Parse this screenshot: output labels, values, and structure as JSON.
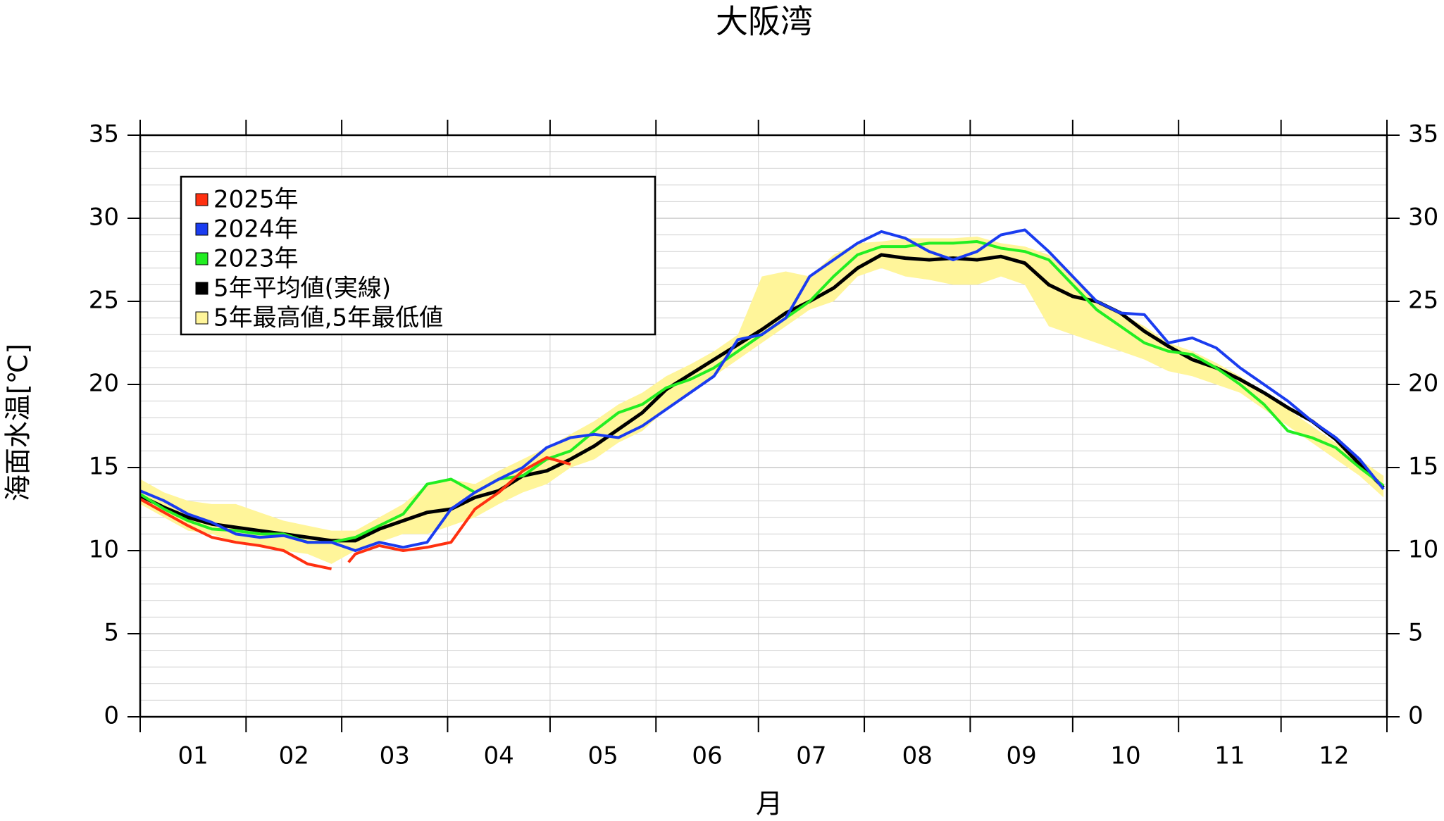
{
  "chart_data": {
    "type": "line",
    "title": "大阪湾",
    "y_label": "海面水温[℃]",
    "x_label": "月",
    "xlim": [
      0,
      365
    ],
    "month_boundaries": [
      0,
      31,
      59,
      90,
      120,
      151,
      181,
      212,
      243,
      273,
      304,
      334,
      365
    ],
    "xticks": [
      {
        "value": 15.5,
        "label": "01"
      },
      {
        "value": 45,
        "label": "02"
      },
      {
        "value": 74.5,
        "label": "03"
      },
      {
        "value": 105,
        "label": "04"
      },
      {
        "value": 135.5,
        "label": "05"
      },
      {
        "value": 166,
        "label": "06"
      },
      {
        "value": 196.5,
        "label": "07"
      },
      {
        "value": 227.5,
        "label": "08"
      },
      {
        "value": 258,
        "label": "09"
      },
      {
        "value": 288.5,
        "label": "10"
      },
      {
        "value": 319,
        "label": "11"
      },
      {
        "value": 349.5,
        "label": "12"
      }
    ],
    "ylim": [
      0,
      35
    ],
    "yticks": [
      0,
      5,
      10,
      15,
      20,
      25,
      30,
      35
    ],
    "minor_grid_step": 1,
    "grid": true,
    "legend": "upper left",
    "x": [
      0,
      7,
      14,
      21,
      28,
      35,
      42,
      49,
      56,
      63,
      70,
      77,
      84,
      91,
      98,
      105,
      112,
      119,
      126,
      133,
      140,
      147,
      154,
      161,
      168,
      175,
      182,
      189,
      196,
      203,
      210,
      217,
      224,
      231,
      238,
      245,
      252,
      259,
      266,
      273,
      280,
      287,
      294,
      301,
      308,
      315,
      322,
      329,
      336,
      343,
      350,
      357,
      364
    ],
    "series": [
      {
        "name": "2025年",
        "color": "#ff3010",
        "x": [
          0,
          7,
          14,
          21,
          28,
          35,
          42,
          49,
          56,
          59,
          61,
          63,
          70,
          77,
          84,
          91,
          98,
          105,
          112,
          119,
          126
        ],
        "values": [
          13.1,
          12.3,
          11.5,
          10.8,
          10.5,
          10.3,
          10.0,
          9.2,
          8.9,
          null,
          9.3,
          9.8,
          10.3,
          10.0,
          10.2,
          10.5,
          12.5,
          13.5,
          14.8,
          15.6,
          15.2
        ]
      },
      {
        "name": "2024年",
        "color": "#1a3cf0",
        "values": [
          13.6,
          13.0,
          12.2,
          11.7,
          11.0,
          10.8,
          10.9,
          10.5,
          10.5,
          10.0,
          10.5,
          10.2,
          10.5,
          12.5,
          13.5,
          14.3,
          15.0,
          16.2,
          16.8,
          17.0,
          16.8,
          17.5,
          18.5,
          19.5,
          20.5,
          22.7,
          23.0,
          24.0,
          26.5,
          27.5,
          28.5,
          29.2,
          28.8,
          28.0,
          27.5,
          28.0,
          29.0,
          29.3,
          28.0,
          26.5,
          25.0,
          24.3,
          24.2,
          22.5,
          22.8,
          22.2,
          21.0,
          20.0,
          19.0,
          17.8,
          16.8,
          15.5,
          13.7
        ]
      },
      {
        "name": "2023年",
        "color": "#22ee22",
        "values": [
          13.4,
          12.5,
          11.8,
          11.3,
          11.2,
          11.0,
          11.0,
          10.5,
          10.5,
          10.8,
          11.5,
          12.2,
          14.0,
          14.3,
          13.5,
          14.3,
          14.5,
          15.5,
          16.0,
          17.2,
          18.3,
          18.8,
          19.8,
          20.3,
          21.0,
          22.0,
          23.0,
          24.0,
          25.0,
          26.5,
          27.8,
          28.3,
          28.3,
          28.5,
          28.5,
          28.6,
          28.2,
          28.0,
          27.5,
          26.0,
          24.5,
          23.5,
          22.5,
          22.0,
          21.8,
          21.0,
          20.0,
          18.8,
          17.2,
          16.8,
          16.2,
          15.0,
          13.9
        ]
      },
      {
        "name": "5年平均値(実線)",
        "color": "#000000",
        "values": [
          13.3,
          12.6,
          12.0,
          11.6,
          11.4,
          11.2,
          11.0,
          10.8,
          10.6,
          10.6,
          11.3,
          11.8,
          12.3,
          12.5,
          13.2,
          13.6,
          14.5,
          14.8,
          15.5,
          16.3,
          17.3,
          18.3,
          19.7,
          20.6,
          21.5,
          22.4,
          23.3,
          24.3,
          25.0,
          25.8,
          27.0,
          27.8,
          27.6,
          27.5,
          27.6,
          27.5,
          27.7,
          27.3,
          26.0,
          25.3,
          25.0,
          24.3,
          23.2,
          22.3,
          21.5,
          21.0,
          20.3,
          19.5,
          18.6,
          17.8,
          16.7,
          15.2,
          13.8
        ]
      },
      {
        "name": "5年最高値,5年最低値",
        "color": "#fff59a",
        "kind": "band",
        "high": [
          14.3,
          13.5,
          13.0,
          12.8,
          12.8,
          12.3,
          11.8,
          11.5,
          11.2,
          11.2,
          12.0,
          12.8,
          14.0,
          14.3,
          14.0,
          14.8,
          15.5,
          16.2,
          17.0,
          17.8,
          18.8,
          19.5,
          20.5,
          21.2,
          22.0,
          23.0,
          26.5,
          26.8,
          26.5,
          27.8,
          28.5,
          28.6,
          28.8,
          28.8,
          28.8,
          28.9,
          28.5,
          28.3,
          27.8,
          26.5,
          25.0,
          24.3,
          23.5,
          22.5,
          22.0,
          21.3,
          20.5,
          19.5,
          18.5,
          17.5,
          16.5,
          15.5,
          14.5
        ],
        "low": [
          12.8,
          12.0,
          11.2,
          11.0,
          10.5,
          10.2,
          10.0,
          9.8,
          9.2,
          10.0,
          10.5,
          11.0,
          11.0,
          11.5,
          12.0,
          12.8,
          13.5,
          14.0,
          15.0,
          15.5,
          16.5,
          17.2,
          18.5,
          19.5,
          20.5,
          21.5,
          22.5,
          23.5,
          24.5,
          25.0,
          26.5,
          27.0,
          26.5,
          26.3,
          26.0,
          26.0,
          26.5,
          26.0,
          23.5,
          23.0,
          22.5,
          22.0,
          21.5,
          20.8,
          20.5,
          20.0,
          19.5,
          18.5,
          17.5,
          16.5,
          15.5,
          14.5,
          13.2
        ]
      }
    ]
  }
}
